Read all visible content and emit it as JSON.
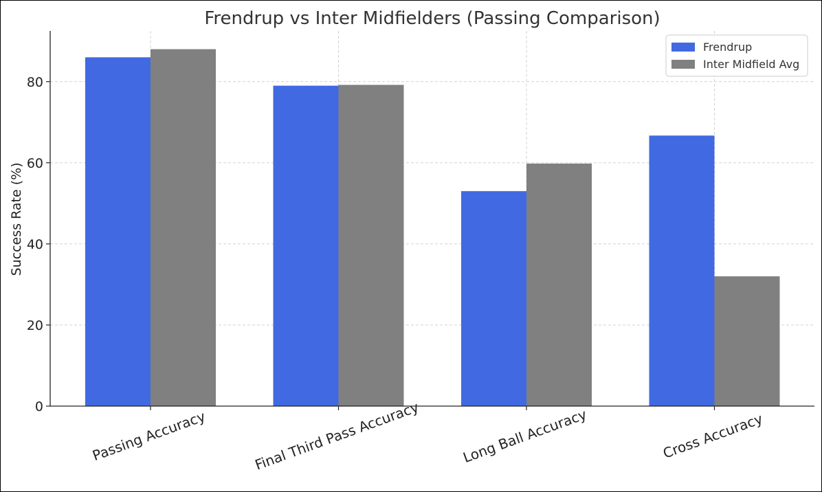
{
  "chart_data": {
    "type": "bar",
    "title": "Frendrup vs Inter Midfielders (Passing Comparison)",
    "xlabel": "",
    "ylabel": "Success Rate (%)",
    "categories": [
      "Passing Accuracy",
      "Final Third Pass Accuracy",
      "Long Ball Accuracy",
      "Cross Accuracy"
    ],
    "series": [
      {
        "name": "Frendrup",
        "color": "#4169e1",
        "values": [
          86,
          79,
          53,
          66.7
        ]
      },
      {
        "name": "Inter Midfield Avg",
        "color": "#808080",
        "values": [
          88,
          79.2,
          59.8,
          32
        ]
      }
    ],
    "ylim": [
      0,
      92.5
    ],
    "yticks": [
      0,
      20,
      40,
      60,
      80
    ],
    "grid": true,
    "legend_position": "top-right"
  }
}
